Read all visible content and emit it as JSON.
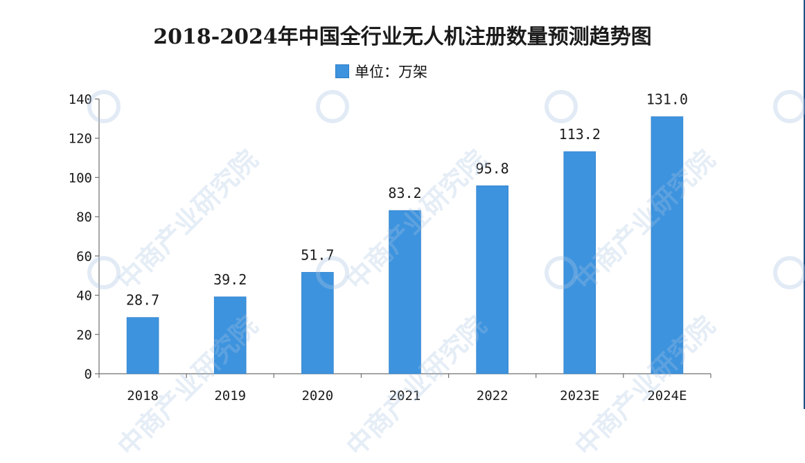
{
  "page": {
    "title": "2018-2024年中国全行业无人机注册数量预测趋势图",
    "legend_label": "单位：万架",
    "watermark_text": "中商产业研究院"
  },
  "colors": {
    "bar": "#3d93de",
    "bar_stroke": "#2d7ec6",
    "axis": "#6f6f6f",
    "text": "#1b1b1b",
    "watermark": "#aac4e1",
    "right_border": "#1f4f85"
  },
  "chart_data": {
    "type": "bar",
    "title": "2018-2024年中国全行业无人机注册数量预测趋势图",
    "xlabel": "",
    "ylabel": "",
    "categories": [
      "2018",
      "2019",
      "2020",
      "2021",
      "2022",
      "2023E",
      "2024E"
    ],
    "series": [
      {
        "name": "单位：万架",
        "values": [
          28.7,
          39.2,
          51.7,
          83.2,
          95.8,
          113.2,
          131.0
        ],
        "data_labels": [
          "28.7",
          "39.2",
          "51.7",
          "83.2",
          "95.8",
          "113.2",
          "131.0"
        ]
      }
    ],
    "ylim": [
      0,
      140
    ],
    "yticks": [
      0,
      20,
      40,
      60,
      80,
      100,
      120,
      140
    ],
    "grid": false,
    "legend": "top-center"
  }
}
